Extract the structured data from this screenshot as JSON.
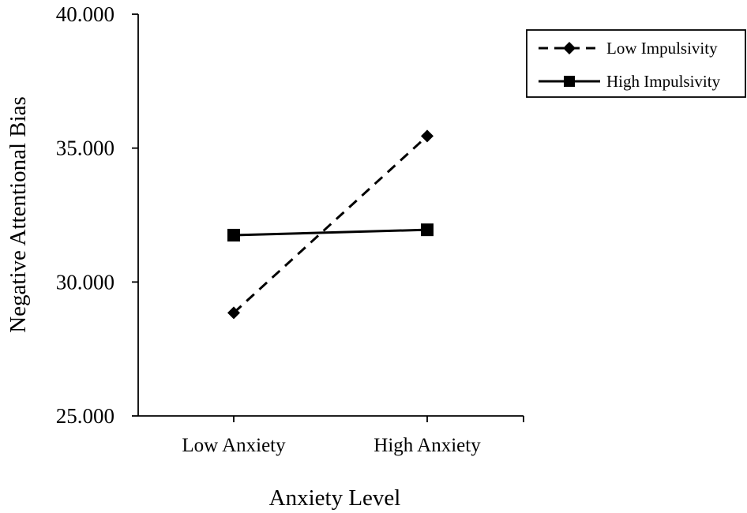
{
  "chart_data": {
    "type": "line",
    "title": "",
    "xlabel": "Anxiety Level",
    "ylabel": "Negative Attentional Bias",
    "categories": [
      "Low Anxiety",
      "High  Anxiety"
    ],
    "ylim": [
      25,
      40
    ],
    "yticks": [
      25,
      30,
      35,
      40
    ],
    "ytick_labels": [
      "25.000",
      "30.000",
      "35.000",
      "40.000"
    ],
    "grid": false,
    "legend": "top-right",
    "series": [
      {
        "name": "Low Impulsivity",
        "values": [
          28.85,
          35.45
        ],
        "line_style": "dashed",
        "marker": "diamond",
        "color": "#000000"
      },
      {
        "name": "High Impulsivity",
        "values": [
          31.75,
          31.95
        ],
        "line_style": "solid",
        "marker": "square",
        "color": "#000000"
      }
    ]
  }
}
